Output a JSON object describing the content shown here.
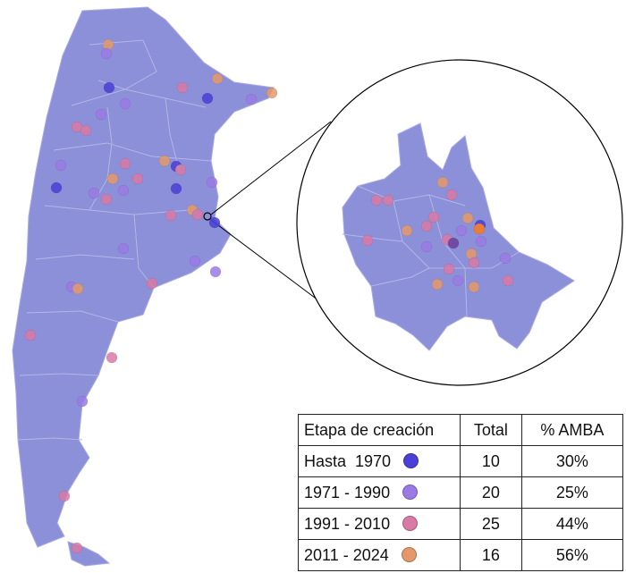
{
  "legend": {
    "headers": {
      "stage": "Etapa de creación",
      "total": "Total",
      "amba": "% AMBA"
    },
    "rows": [
      {
        "stage": "Hasta  1970",
        "total": "10",
        "amba": "30%",
        "color": "#4a3fd6",
        "marker": "dark-blue-dot-icon"
      },
      {
        "stage": "1971 - 1990",
        "total": "20",
        "amba": "25%",
        "color": "#9b7ae6",
        "marker": "purple-dot-icon"
      },
      {
        "stage": "1991 - 2010",
        "total": "25",
        "amba": "44%",
        "color": "#d97aa6",
        "marker": "pink-dot-icon"
      },
      {
        "stage": "2011 - 2024",
        "total": "16",
        "amba": "56%",
        "color": "#e5996a",
        "marker": "orange-dot-icon"
      }
    ]
  },
  "map_colors": {
    "land": "#8c90d8",
    "borders": "#b3b6e6",
    "outline": "#000000"
  }
}
